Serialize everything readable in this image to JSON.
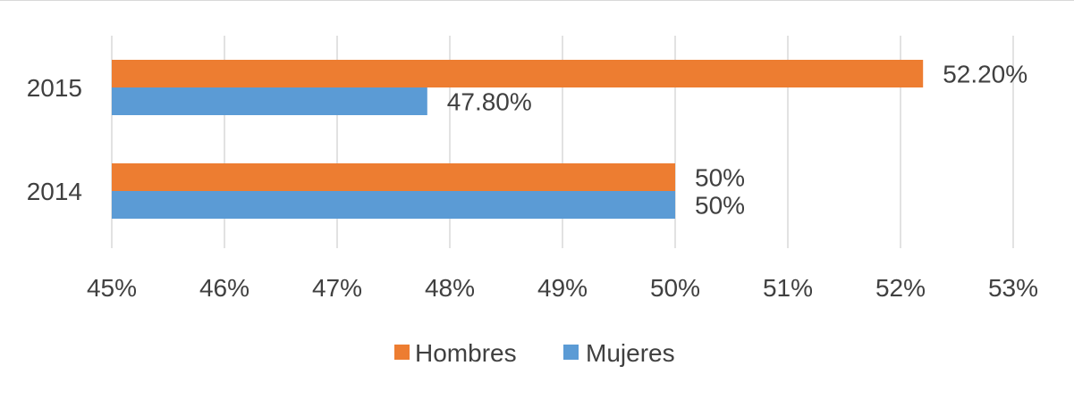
{
  "chart_data": {
    "type": "bar",
    "orientation": "horizontal",
    "categories": [
      "2015",
      "2014"
    ],
    "series": [
      {
        "name": "Hombres",
        "color": "#ED7D31",
        "values": [
          52.2,
          50
        ],
        "labels": [
          "52.20%",
          "50%"
        ]
      },
      {
        "name": "Mujeres",
        "color": "#5B9BD5",
        "values": [
          47.8,
          50
        ],
        "labels": [
          "47.80%",
          "50%"
        ]
      }
    ],
    "xlim": [
      45,
      53
    ],
    "xticks": [
      45,
      46,
      47,
      48,
      49,
      50,
      51,
      52,
      53
    ],
    "xtick_labels": [
      "45%",
      "46%",
      "47%",
      "48%",
      "49%",
      "50%",
      "51%",
      "52%",
      "53%"
    ],
    "grid": "vertical",
    "legend": "bottom-center",
    "title": "",
    "xlabel": "",
    "ylabel": ""
  }
}
